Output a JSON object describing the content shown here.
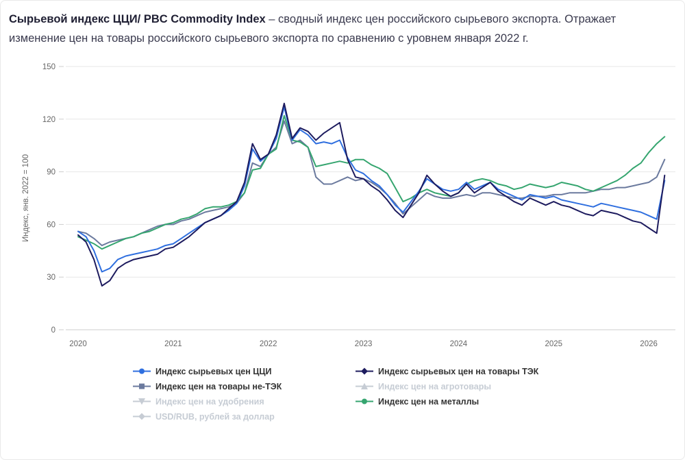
{
  "header": {
    "title_bold": "Сырьевой индекс ЦЦИ/ PBC Commodity Index",
    "title_rest": " – сводный индекс цен российского сырьевого экспорта. Отражает изменение цен на товары российского сырьевого экспорта по сравнению с уровнем января 2022 г."
  },
  "colors": {
    "cci": "#2f6fdf",
    "tek": "#1d1b5e",
    "non_tek": "#6b7a9e",
    "metals": "#35a56f",
    "inactive": "#c6ccd4",
    "grid": "#e7e7e7",
    "axis": "#cccccc",
    "tick_label": "#666666"
  },
  "chart_data": {
    "type": "line",
    "title": "",
    "ylabel": "Индекс, янв. 2022 = 100",
    "ylim": [
      0,
      150
    ],
    "y_ticks": [
      0,
      30,
      60,
      90,
      120,
      150
    ],
    "x_ticks": [
      2020,
      2021,
      2022,
      2023,
      2024,
      2025,
      2026
    ],
    "x_min": 2019.87,
    "x_max": 2026.28,
    "x_start": 2020.0,
    "x_step": 0.0833333,
    "x_unit": "monthly, Jan 2020 – Mar 2026",
    "grid": true,
    "legend_position": "bottom",
    "series": [
      {
        "name": "Индекс сырьевых цен ЦЦИ",
        "color_key": "cci",
        "z": 3,
        "values": [
          56,
          53,
          45,
          33,
          35,
          40,
          42,
          43,
          44,
          45,
          46,
          48,
          49,
          52,
          55,
          58,
          61,
          63,
          65,
          68,
          72,
          82,
          103,
          96,
          100,
          109,
          127,
          108,
          114,
          111,
          106,
          107,
          106,
          108,
          98,
          91,
          89,
          85,
          82,
          77,
          71,
          67,
          73,
          79,
          86,
          83,
          80,
          79,
          80,
          84,
          80,
          82,
          84,
          80,
          78,
          76,
          74,
          77,
          76,
          75,
          76,
          74,
          73,
          72,
          71,
          70,
          72,
          71,
          70,
          69,
          68,
          67,
          65,
          63,
          85
        ]
      },
      {
        "name": "Индекс сырьевых цен на товары ТЭК",
        "color_key": "tek",
        "z": 4,
        "values": [
          54,
          50,
          40,
          25,
          28,
          35,
          38,
          40,
          41,
          42,
          43,
          46,
          47,
          50,
          53,
          57,
          61,
          63,
          65,
          69,
          73,
          84,
          106,
          97,
          100,
          111,
          129,
          109,
          115,
          113,
          108,
          112,
          115,
          118,
          97,
          87,
          86,
          82,
          79,
          74,
          68,
          64,
          71,
          78,
          88,
          83,
          79,
          76,
          78,
          83,
          78,
          81,
          84,
          79,
          76,
          73,
          71,
          75,
          73,
          71,
          73,
          71,
          70,
          68,
          66,
          65,
          68,
          67,
          66,
          64,
          62,
          61,
          58,
          55,
          88
        ]
      },
      {
        "name": "Индекс цен на товары не-ТЭК",
        "color_key": "non_tek",
        "z": 1,
        "values": [
          56,
          55,
          52,
          48,
          50,
          51,
          52,
          53,
          55,
          57,
          59,
          60,
          60,
          62,
          63,
          65,
          67,
          68,
          69,
          70,
          72,
          78,
          95,
          93,
          100,
          104,
          119,
          106,
          108,
          104,
          87,
          83,
          83,
          85,
          87,
          85,
          86,
          84,
          81,
          77,
          72,
          66,
          70,
          74,
          78,
          76,
          75,
          75,
          76,
          77,
          76,
          78,
          78,
          77,
          76,
          75,
          75,
          76,
          76,
          76,
          77,
          77,
          78,
          78,
          78,
          79,
          80,
          80,
          81,
          81,
          82,
          83,
          84,
          87,
          97
        ]
      },
      {
        "name": "Индекс цен на металлы",
        "color_key": "metals",
        "z": 2,
        "values": [
          53,
          51,
          49,
          46,
          48,
          50,
          52,
          53,
          55,
          56,
          58,
          60,
          61,
          63,
          64,
          66,
          69,
          70,
          70,
          71,
          73,
          78,
          91,
          92,
          100,
          103,
          122,
          108,
          107,
          104,
          93,
          94,
          95,
          96,
          95,
          97,
          97,
          94,
          92,
          89,
          81,
          73,
          75,
          78,
          80,
          78,
          77,
          76,
          78,
          83,
          85,
          86,
          85,
          83,
          82,
          80,
          81,
          83,
          82,
          81,
          82,
          84,
          83,
          82,
          80,
          79,
          81,
          83,
          85,
          88,
          92,
          95,
          101,
          106,
          110
        ]
      }
    ]
  },
  "legend": {
    "items": [
      {
        "label": "Индекс сырьевых цен ЦЦИ",
        "marker": "circle",
        "color_key": "cci",
        "active": true
      },
      {
        "label": "Индекс сырьевых цен на товары ТЭК",
        "marker": "diamond",
        "color_key": "tek",
        "active": true
      },
      {
        "label": "Индекс цен на товары не-ТЭК",
        "marker": "square",
        "color_key": "non_tek",
        "active": true
      },
      {
        "label": "Индекс цен на агротовары",
        "marker": "triangle",
        "color_key": "inactive",
        "active": false
      },
      {
        "label": "Индекс цен на удобрения",
        "marker": "triangle-down",
        "color_key": "inactive",
        "active": false
      },
      {
        "label": "Индекс цен на металлы",
        "marker": "circle",
        "color_key": "metals",
        "active": true
      },
      {
        "label": "USD/RUB, рублей за доллар",
        "marker": "diamond",
        "color_key": "inactive",
        "active": false
      }
    ]
  }
}
